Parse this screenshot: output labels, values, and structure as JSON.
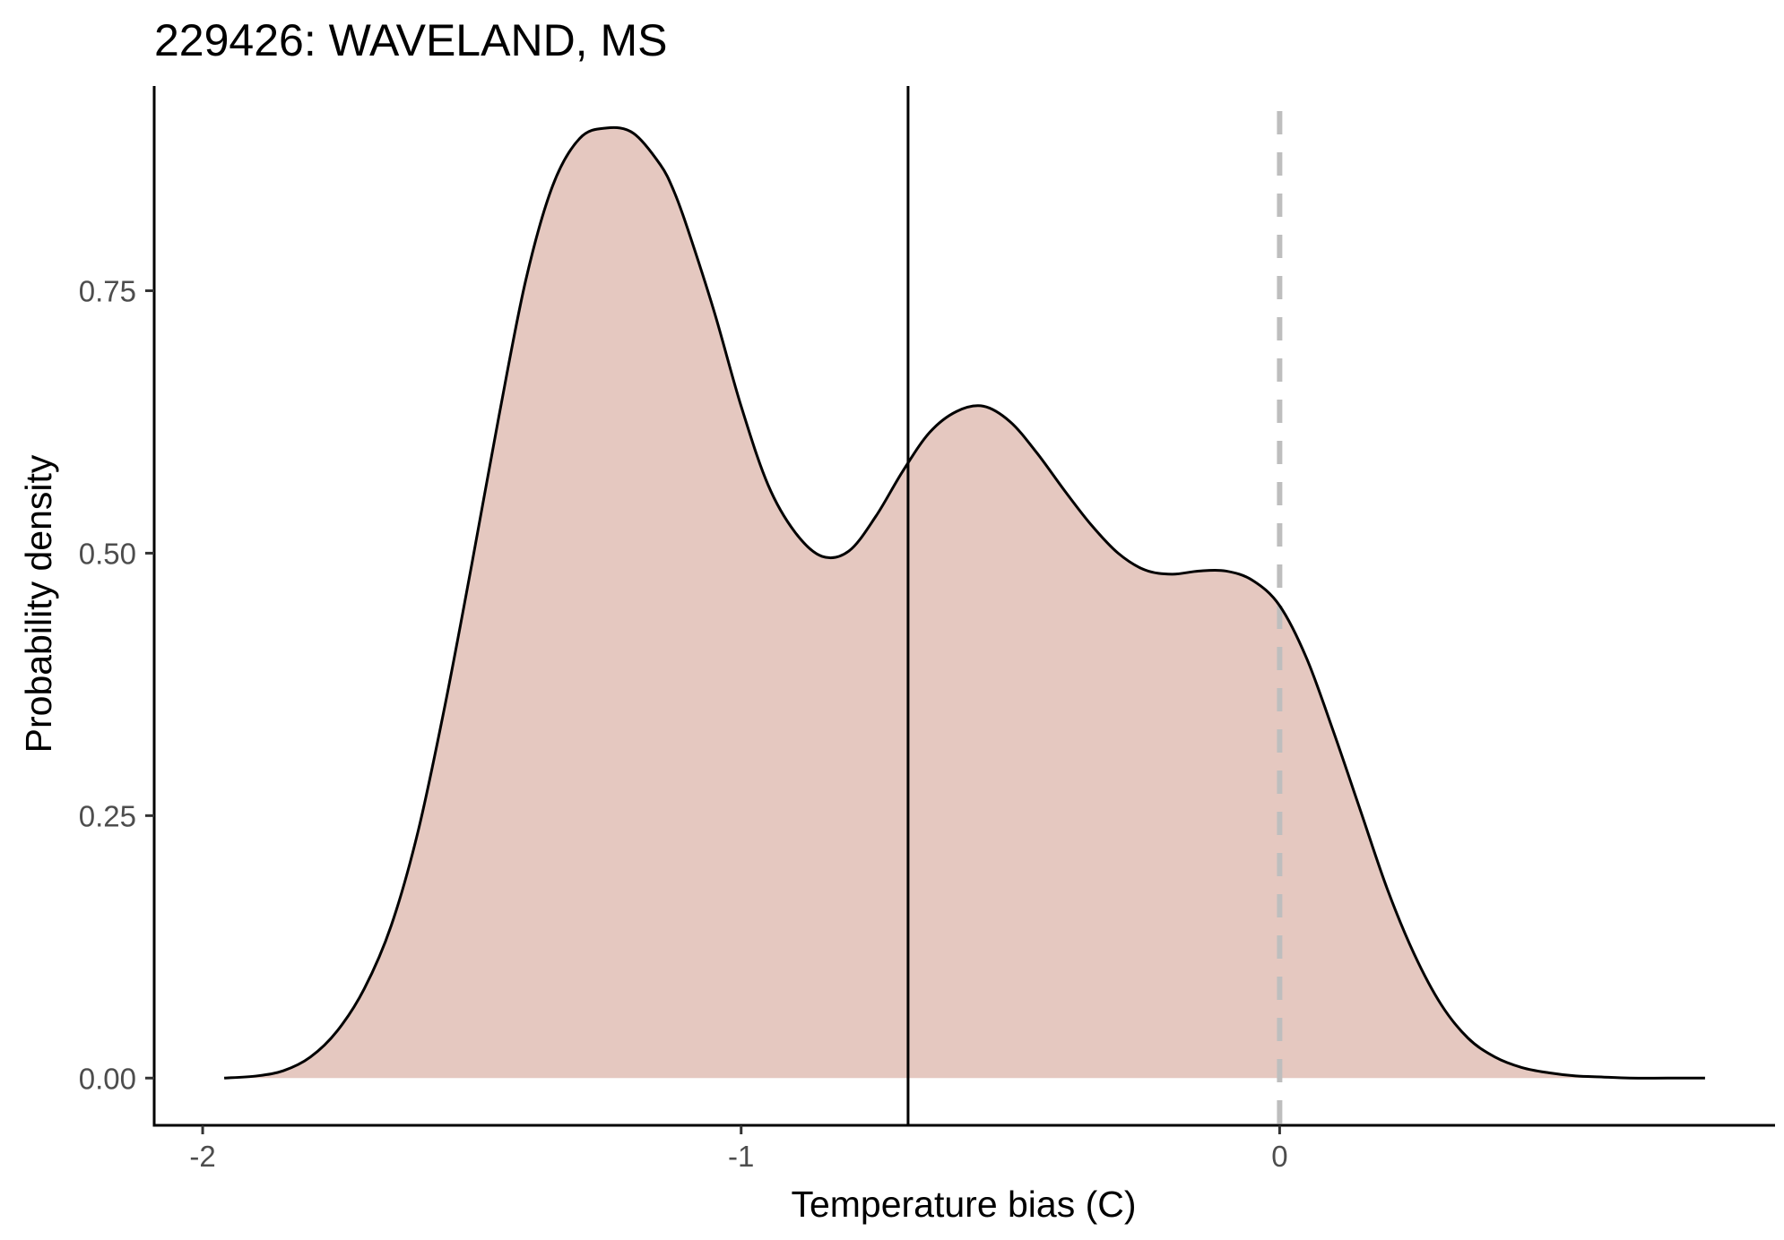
{
  "chart_data": {
    "type": "area",
    "title": "229426: WAVELAND, MS",
    "xlabel": "Temperature bias (C)",
    "ylabel": "Probability density",
    "xlim": [
      -2.09,
      0.92
    ],
    "ylim": [
      -0.045,
      0.945
    ],
    "x_ticks": [
      -2,
      -1,
      0
    ],
    "x_tick_labels": [
      "-2",
      "-1",
      "0"
    ],
    "y_ticks": [
      0,
      0.25,
      0.5,
      0.75
    ],
    "y_tick_labels": [
      "0.00",
      "0.25",
      "0.50",
      "0.75"
    ],
    "grid": false,
    "legend": "none",
    "fill_color": "#e5c8c0",
    "line_color": "#000000",
    "series": [
      {
        "x": [
          -1.96,
          -1.9,
          -1.85,
          -1.8,
          -1.75,
          -1.7,
          -1.65,
          -1.6,
          -1.55,
          -1.5,
          -1.45,
          -1.4,
          -1.35,
          -1.3,
          -1.25,
          -1.2,
          -1.15,
          -1.125,
          -1.1,
          -1.05,
          -1.0,
          -0.95,
          -0.9,
          -0.85,
          -0.8,
          -0.75,
          -0.7,
          -0.65,
          -0.6,
          -0.55,
          -0.5,
          -0.45,
          -0.4,
          -0.35,
          -0.3,
          -0.25,
          -0.2,
          -0.15,
          -0.1,
          -0.05,
          0.0,
          0.05,
          0.1,
          0.15,
          0.2,
          0.25,
          0.3,
          0.35,
          0.4,
          0.45,
          0.5,
          0.55,
          0.6,
          0.65,
          0.72,
          0.79
        ],
        "y": [
          0.0,
          0.002,
          0.007,
          0.02,
          0.045,
          0.085,
          0.145,
          0.235,
          0.355,
          0.49,
          0.63,
          0.76,
          0.85,
          0.895,
          0.905,
          0.9,
          0.87,
          0.845,
          0.81,
          0.73,
          0.64,
          0.565,
          0.52,
          0.497,
          0.502,
          0.535,
          0.578,
          0.615,
          0.635,
          0.64,
          0.625,
          0.595,
          0.56,
          0.527,
          0.5,
          0.484,
          0.48,
          0.483,
          0.483,
          0.474,
          0.45,
          0.4,
          0.33,
          0.255,
          0.18,
          0.118,
          0.07,
          0.038,
          0.02,
          0.01,
          0.005,
          0.002,
          0.001,
          0.0,
          0.0,
          0.0
        ]
      }
    ],
    "reference_lines": [
      {
        "axis": "x",
        "value": -0.69,
        "style": "solid",
        "color": "#000000"
      },
      {
        "axis": "x",
        "value": 0,
        "style": "dashed",
        "color": "#bebebe"
      }
    ]
  }
}
